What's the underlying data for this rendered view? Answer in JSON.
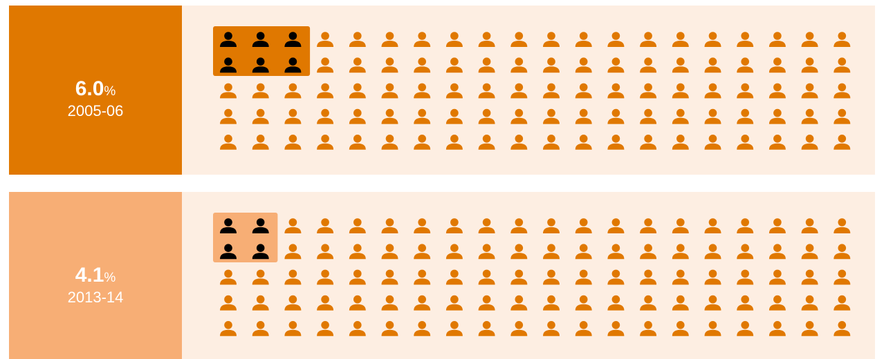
{
  "chart_data": [
    {
      "type": "pictogram",
      "value": 6.0,
      "value_label": "6.0",
      "unit": "%",
      "period": "2005-06",
      "total": 100,
      "highlighted": 6,
      "color": "#e07800",
      "highlight_color": "#000000",
      "panel_color": "#e07800",
      "box_color": "#e07800"
    },
    {
      "type": "pictogram",
      "value": 4.1,
      "value_label": "4.1",
      "unit": "%",
      "period": "2013-14",
      "total": 100,
      "highlighted": 4,
      "color": "#e07800",
      "highlight_color": "#000000",
      "panel_color": "#f7ae75",
      "box_color": "#f7ae75"
    }
  ]
}
